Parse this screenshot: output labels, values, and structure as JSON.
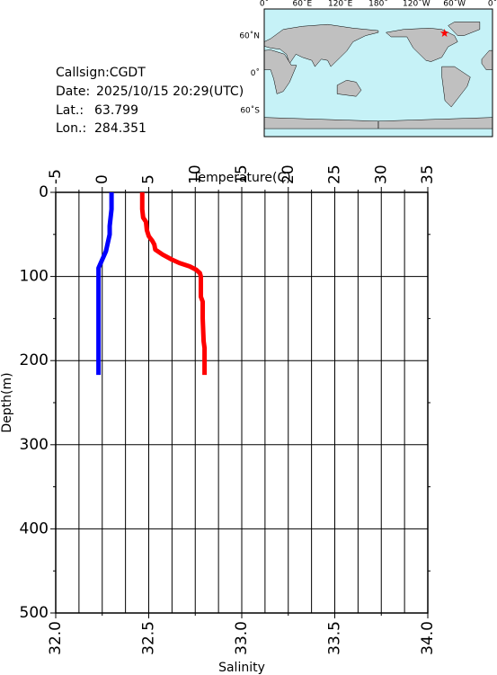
{
  "chart_data": {
    "type": "line",
    "ylabel": "Depth(m)",
    "ylim": [
      0,
      500
    ],
    "yticks": [
      0,
      100,
      200,
      300,
      400,
      500
    ],
    "y_minor_ticks": [
      50,
      150,
      250,
      350,
      450
    ],
    "x_top": {
      "label": "Temperature(C)",
      "lim": [
        -5,
        35
      ],
      "ticks": [
        -5,
        0,
        5,
        10,
        15,
        20,
        25,
        30,
        35
      ],
      "minor_ticks": [
        -2.5,
        2.5,
        7.5,
        12.5,
        17.5,
        22.5,
        27.5,
        32.5
      ]
    },
    "x_bottom": {
      "label": "Salinity",
      "lim": [
        32,
        34
      ],
      "ticks": [
        {
          "value": 32,
          "label": "32.0"
        },
        32.5,
        {
          "value": 33,
          "label": "33.0"
        },
        33.5,
        {
          "value": 34,
          "label": "34.0"
        }
      ],
      "minor_ticks": [
        32.25,
        32.75,
        33.25,
        33.75
      ]
    },
    "grid": true,
    "series": [
      {
        "color": "#ff0000",
        "axis": "x_top",
        "depth": [
          0,
          10,
          20,
          30,
          35,
          45,
          52,
          58,
          62,
          68,
          74,
          80,
          84,
          88,
          92,
          96,
          100,
          124,
          130,
          150,
          177,
          185,
          200,
          217
        ],
        "values": [
          4.3,
          4.3,
          4.3,
          4.4,
          4.7,
          4.8,
          5.0,
          5.4,
          5.6,
          5.7,
          6.5,
          7.5,
          8.3,
          9.4,
          10.1,
          10.5,
          10.6,
          10.6,
          10.8,
          10.8,
          10.9,
          11.0,
          11.0,
          11.0
        ]
      },
      {
        "color": "#0000ff",
        "axis": "x_bottom",
        "depth": [
          0,
          20,
          40,
          50,
          60,
          70,
          75,
          80,
          85,
          90,
          100,
          150,
          217
        ],
        "values": [
          32.3,
          32.3,
          32.29,
          32.29,
          32.28,
          32.27,
          32.26,
          32.25,
          32.24,
          32.23,
          32.23,
          32.23,
          32.23
        ]
      }
    ]
  },
  "info": {
    "callsign": "Callsign:CGDT",
    "date_label": "Date:",
    "date": "2025/10/15 20:29(UTC)",
    "lat_label": "Lat.:",
    "lat": 63.799,
    "lon_label": "Lon.:",
    "lon": 284.351
  },
  "map": {
    "lon_labels": [
      "0˚",
      "60˚E",
      "120˚E",
      "180˚",
      "120˚W",
      "60˚W",
      "0˚"
    ],
    "lat_labels": [
      "60˚N",
      "0˚",
      "60˚S"
    ]
  }
}
